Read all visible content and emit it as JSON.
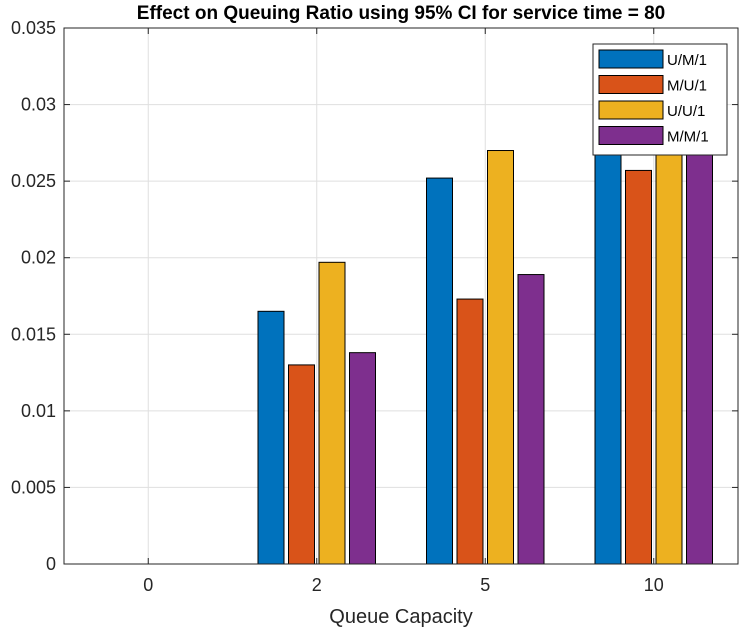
{
  "chart_data": {
    "type": "bar",
    "title": "Effect on Queuing Ratio using 95% CI for service time = 80",
    "xlabel": "Queue Capacity",
    "ylabel": "",
    "categories": [
      "0",
      "2",
      "5",
      "10"
    ],
    "ylim": [
      0,
      0.035
    ],
    "yticks": [
      "0",
      "0.005",
      "0.01",
      "0.015",
      "0.02",
      "0.025",
      "0.03",
      "0.035"
    ],
    "grid": true,
    "legend_position": "top-right",
    "series": [
      {
        "name": "U/M/1",
        "color": "#0072BD",
        "values": [
          0,
          0.0165,
          0.0252,
          0.0282
        ]
      },
      {
        "name": "M/U/1",
        "color": "#D95319",
        "values": [
          0,
          0.013,
          0.0173,
          0.0257
        ]
      },
      {
        "name": "U/U/1",
        "color": "#EDB120",
        "values": [
          0,
          0.0197,
          0.027,
          0.029
        ]
      },
      {
        "name": "M/M/1",
        "color": "#7E2F8E",
        "values": [
          0,
          0.0138,
          0.0189,
          0.028
        ]
      }
    ]
  }
}
